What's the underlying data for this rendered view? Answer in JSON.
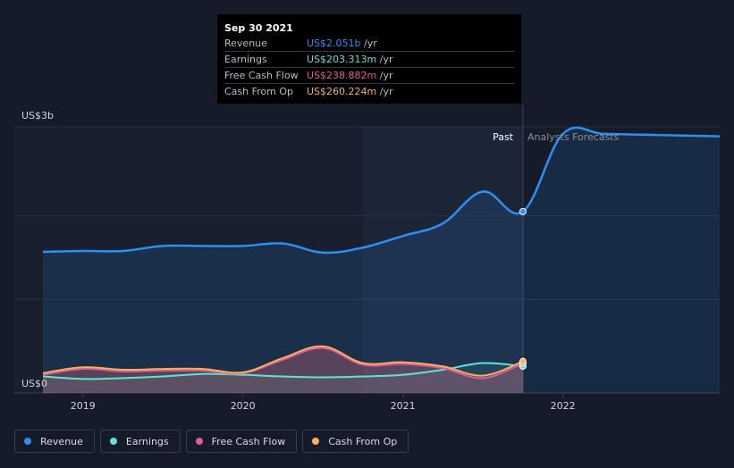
{
  "tooltip": {
    "date": "Sep 30 2021",
    "rows": [
      {
        "label": "Revenue",
        "value": "US$2.051b",
        "unit": " /yr",
        "color": "#2e8ff2"
      },
      {
        "label": "Earnings",
        "value": "US$203.313m",
        "unit": " /yr",
        "color": "#5fe3d2"
      },
      {
        "label": "Free Cash Flow",
        "value": "US$238.882m",
        "unit": " /yr",
        "color": "#e25a9a"
      },
      {
        "label": "Cash From Op",
        "value": "US$260.224m",
        "unit": " /yr",
        "color": "#f4b35a"
      }
    ]
  },
  "legend": [
    {
      "label": "Revenue",
      "color": "#2e8ff2"
    },
    {
      "label": "Earnings",
      "color": "#5fe3d2"
    },
    {
      "label": "Free Cash Flow",
      "color": "#e25a9a"
    },
    {
      "label": "Cash From Op",
      "color": "#f4b35a"
    }
  ],
  "chart_data": {
    "type": "line",
    "y_axis_top_label": "US$3b",
    "y_axis_bottom_label": "US$0",
    "ylim": [
      0,
      3.0
    ],
    "xlim": [
      2018.75,
      2022.98
    ],
    "x_ticks": [
      2019,
      2020,
      2021,
      2022
    ],
    "x_tick_labels": [
      "2019",
      "2020",
      "2021",
      "2022"
    ],
    "past_label": "Past",
    "forecast_label": "Analysts Forecasts",
    "divider_x": 2021.75,
    "highlight_start_x": 2020.75,
    "series": [
      {
        "name": "Revenue",
        "color": "#2e8ff2",
        "x": [
          2018.75,
          2019.0,
          2019.25,
          2019.5,
          2019.75,
          2020.0,
          2020.25,
          2020.5,
          2020.75,
          2021.0,
          2021.25,
          2021.5,
          2021.75,
          2022.0,
          2022.25,
          2022.5,
          2022.75,
          2022.98
        ],
        "values": [
          1.57,
          1.58,
          1.58,
          1.64,
          1.64,
          1.64,
          1.67,
          1.56,
          1.62,
          1.76,
          1.91,
          2.29,
          2.051,
          2.98,
          2.98,
          2.97,
          2.96,
          2.95
        ]
      },
      {
        "name": "Earnings",
        "color": "#5fe3d2",
        "x": [
          2018.75,
          2019.0,
          2019.25,
          2019.5,
          2019.75,
          2020.0,
          2020.25,
          2020.5,
          2020.75,
          2021.0,
          2021.25,
          2021.5,
          2021.75
        ],
        "values": [
          0.08,
          0.05,
          0.06,
          0.08,
          0.11,
          0.1,
          0.08,
          0.07,
          0.08,
          0.1,
          0.16,
          0.24,
          0.203
        ]
      },
      {
        "name": "Free Cash Flow",
        "color": "#e25a9a",
        "x": [
          2018.75,
          2019.0,
          2019.25,
          2019.5,
          2019.75,
          2020.0,
          2020.25,
          2020.5,
          2020.75,
          2021.0,
          2021.25,
          2021.5,
          2021.75
        ],
        "values": [
          0.1,
          0.17,
          0.14,
          0.15,
          0.15,
          0.12,
          0.28,
          0.42,
          0.22,
          0.23,
          0.18,
          0.06,
          0.239
        ]
      },
      {
        "name": "Cash From Op",
        "color": "#f4b35a",
        "x": [
          2018.75,
          2019.0,
          2019.25,
          2019.5,
          2019.75,
          2020.0,
          2020.25,
          2020.5,
          2020.75,
          2021.0,
          2021.25,
          2021.5,
          2021.75
        ],
        "values": [
          0.12,
          0.19,
          0.16,
          0.17,
          0.17,
          0.13,
          0.3,
          0.44,
          0.24,
          0.25,
          0.2,
          0.09,
          0.26
        ]
      }
    ]
  }
}
